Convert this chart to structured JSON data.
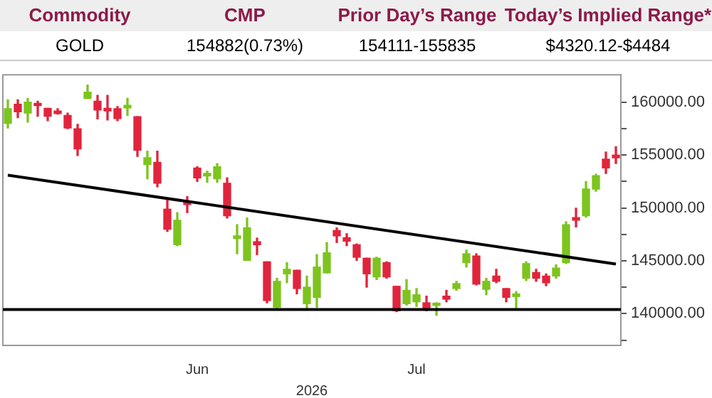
{
  "chart_data": [
    {
      "type": "other",
      "annotations": [
        "Commodity",
        "CMP",
        "Prior Day’s Range",
        "Today’s Implied Range*",
        "GOLD",
        "154882(0.73%)",
        "154111-155835",
        "$4320.12-$4484"
      ]
    },
    {
      "type": "candlestick",
      "xlabel": "2026",
      "categories": [
        null,
        null,
        null,
        null,
        null,
        null,
        null,
        null,
        null,
        null,
        null,
        null,
        null,
        null,
        null,
        null,
        null,
        null,
        null,
        "Jun",
        null,
        null,
        null,
        null,
        null,
        null,
        null,
        null,
        null,
        null,
        null,
        null,
        null,
        null,
        null,
        null,
        null,
        null,
        null,
        null,
        null,
        "Jul",
        null,
        null,
        null,
        null,
        null,
        null,
        null,
        null,
        null,
        null,
        null,
        null,
        null,
        null,
        null,
        null,
        null,
        null,
        null,
        null
      ],
      "ohlc": [
        [
          158000,
          160230,
          157570,
          159390
        ],
        [
          159810,
          160230,
          158540,
          159090
        ],
        [
          158970,
          160360,
          158120,
          160020
        ],
        [
          159890,
          160100,
          158670,
          159680
        ],
        [
          159430,
          159430,
          158250,
          158670
        ],
        [
          159180,
          159390,
          158880,
          158930
        ],
        [
          158760,
          158970,
          157490,
          157570
        ],
        [
          157490,
          157910,
          154960,
          155590
        ],
        [
          160360,
          161630,
          160360,
          160950
        ],
        [
          160100,
          160650,
          158420,
          159260
        ],
        [
          159430,
          160650,
          158330,
          159180
        ],
        [
          159390,
          159600,
          158250,
          158460
        ],
        [
          159470,
          160360,
          158760,
          159720
        ],
        [
          158630,
          158630,
          154870,
          155460
        ],
        [
          154110,
          155380,
          152760,
          154750
        ],
        [
          154320,
          155380,
          152000,
          152340
        ],
        [
          149890,
          150740,
          147780,
          147990
        ],
        [
          146520,
          149560,
          146430,
          148840
        ],
        [
          150570,
          151080,
          149560,
          150320
        ],
        [
          153780,
          153900,
          152510,
          152850
        ],
        [
          153020,
          153480,
          152430,
          153270
        ],
        [
          152760,
          154200,
          152430,
          153900
        ],
        [
          152340,
          152850,
          149050,
          149260
        ],
        [
          147110,
          148420,
          145670,
          147360
        ],
        [
          145040,
          149050,
          145040,
          148120
        ],
        [
          146810,
          147150,
          145590,
          146520
        ],
        [
          144910,
          144910,
          141030,
          141240
        ],
        [
          140610,
          143350,
          140400,
          143060
        ],
        [
          143770,
          144830,
          142930,
          144200
        ],
        [
          144110,
          144110,
          141880,
          142380
        ],
        [
          140950,
          143560,
          140400,
          142510
        ],
        [
          141540,
          145590,
          140610,
          144410
        ],
        [
          143860,
          146730,
          143860,
          145760
        ],
        [
          147870,
          148120,
          146730,
          147360
        ],
        [
          147190,
          147570,
          146430,
          146860
        ],
        [
          146520,
          146600,
          145040,
          145340
        ],
        [
          145250,
          145250,
          142510,
          143770
        ],
        [
          143480,
          145340,
          143230,
          145250
        ],
        [
          144830,
          144910,
          143350,
          143480
        ],
        [
          142590,
          142590,
          140190,
          140270
        ],
        [
          140950,
          143230,
          140820,
          142210
        ],
        [
          141120,
          142380,
          140690,
          141790
        ],
        [
          141030,
          141660,
          140270,
          140530
        ],
        [
          140780,
          141030,
          139850,
          141000
        ],
        [
          141660,
          142210,
          141120,
          141370
        ],
        [
          142380,
          143060,
          142210,
          142850
        ],
        [
          144830,
          146010,
          144410,
          145670
        ],
        [
          145460,
          145670,
          142720,
          142800
        ],
        [
          142300,
          143350,
          141790,
          143060
        ],
        [
          143560,
          144200,
          142930,
          143060
        ],
        [
          142380,
          142380,
          141120,
          141540
        ],
        [
          141620,
          142090,
          140530,
          141870
        ],
        [
          143350,
          144910,
          143140,
          144740
        ],
        [
          143900,
          144200,
          143060,
          143350
        ],
        [
          143560,
          143770,
          142640,
          142930
        ],
        [
          143560,
          144620,
          143350,
          144320
        ],
        [
          144830,
          148710,
          144740,
          148420
        ],
        [
          149090,
          149980,
          148210,
          148840
        ],
        [
          149260,
          152510,
          149130,
          151790
        ],
        [
          151790,
          153190,
          151580,
          153060
        ],
        [
          154620,
          155300,
          153270,
          153780
        ],
        [
          155000,
          155800,
          154200,
          154750
        ]
      ],
      "colors": [
        "#7dc41f",
        "#e0243c",
        "#7dc41f",
        "#e0243c",
        "#e0243c",
        "#e0243c",
        "#e0243c",
        "#e0243c",
        "#7dc41f",
        "#e0243c",
        "#e0243c",
        "#e0243c",
        "#7dc41f",
        "#e0243c",
        "#7dc41f",
        "#e0243c",
        "#e0243c",
        "#7dc41f",
        "#e0243c",
        "#e0243c",
        "#7dc41f",
        "#7dc41f",
        "#e0243c",
        "#7dc41f",
        "#7dc41f",
        "#e0243c",
        "#e0243c",
        "#7dc41f",
        "#7dc41f",
        "#e0243c",
        "#7dc41f",
        "#7dc41f",
        "#7dc41f",
        "#e0243c",
        "#e0243c",
        "#e0243c",
        "#e0243c",
        "#7dc41f",
        "#e0243c",
        "#e0243c",
        "#7dc41f",
        "#7dc41f",
        "#e0243c",
        "#7dc41f",
        "#e0243c",
        "#7dc41f",
        "#7dc41f",
        "#e0243c",
        "#7dc41f",
        "#e0243c",
        "#e0243c",
        "#7dc41f",
        "#7dc41f",
        "#e0243c",
        "#e0243c",
        "#7dc41f",
        "#7dc41f",
        "#e0243c",
        "#7dc41f",
        "#7dc41f",
        "#e0243c",
        "#e0243c"
      ],
      "series": [
        {
          "type": "line",
          "color": "#000000",
          "values": [
            153100,
            null,
            null,
            null,
            null,
            null,
            null,
            null,
            null,
            null,
            null,
            null,
            null,
            null,
            null,
            null,
            null,
            null,
            null,
            null,
            null,
            null,
            null,
            null,
            null,
            null,
            null,
            null,
            null,
            null,
            null,
            null,
            null,
            null,
            null,
            null,
            null,
            null,
            null,
            null,
            null,
            null,
            null,
            null,
            null,
            null,
            null,
            null,
            null,
            null,
            null,
            null,
            null,
            null,
            null,
            null,
            null,
            null,
            null,
            null,
            null,
            144700
          ]
        }
      ],
      "ref_lines": [
        {
          "axis": "y",
          "value": 140400,
          "color": "#000000"
        }
      ],
      "ylim": [
        137000,
        162600
      ],
      "yticks": [
        {
          "value": 137500,
          "label": null
        },
        {
          "value": 140000,
          "label": "140000.00"
        },
        {
          "value": 142500,
          "label": null
        },
        {
          "value": 145000,
          "label": "145000.00"
        },
        {
          "value": 147500,
          "label": null
        },
        {
          "value": 150000,
          "label": "150000.00"
        },
        {
          "value": 152500,
          "label": null
        },
        {
          "value": 155000,
          "label": "155000.00"
        },
        {
          "value": 157500,
          "label": null
        },
        {
          "value": 160000,
          "label": "160000.00"
        }
      ]
    }
  ]
}
